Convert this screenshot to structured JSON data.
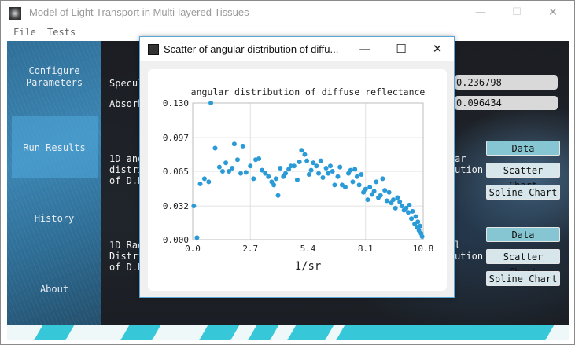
{
  "main_window": {
    "title": "Model of Light Transport in Multi-layered Tissues",
    "controls": {
      "minimize": "—",
      "maximize": "☐",
      "close": "✕"
    }
  },
  "menu": [
    "File",
    "Tests"
  ],
  "sidebar": {
    "items": [
      {
        "label_lines": [
          "Configure",
          "Parameters"
        ]
      },
      {
        "label_lines": [
          "Run Results"
        ]
      },
      {
        "label_lines": [
          "History"
        ]
      },
      {
        "label_lines": [
          "About"
        ]
      }
    ],
    "active_index": 1
  },
  "results": {
    "specular_label": "Specul",
    "specular_value": "0.236798",
    "absorbed_label": "Absorb",
    "absorbed_value": "0.096434",
    "angular_label_left": [
      "1D ang",
      "distri",
      "of D.R"
    ],
    "angular_label_right": [
      "ar",
      "ution"
    ],
    "radial_label_left": [
      "1D Rad",
      "Distri",
      "of D.R"
    ],
    "radial_label_right": [
      "l",
      "ution"
    ],
    "buttons": {
      "data": "Data",
      "scatter": "Scatter Chart",
      "spline": "Spline Chart"
    }
  },
  "dialog": {
    "title": "Scatter of angular distribution of diffu...",
    "controls": {
      "minimize": "—",
      "maximize": "☐",
      "close": "✕"
    }
  },
  "colors": {
    "sidebar_blue": "#3a82b0",
    "accent_cyan": "#36c8d8",
    "point": "#2b9bd7"
  },
  "chart_data": {
    "type": "scatter",
    "title": "angular distribution of diffuse reflectance",
    "xlabel": "1/sr",
    "ylabel": "",
    "xlim": [
      0.0,
      10.8
    ],
    "ylim": [
      0.0,
      0.13
    ],
    "xticks": [
      "0.0",
      "2.7",
      "5.4",
      "8.1",
      "10.8"
    ],
    "yticks": [
      "0.000",
      "0.032",
      "0.065",
      "0.097",
      "0.130"
    ],
    "grid": true,
    "points": [
      [
        0.05,
        0.032
      ],
      [
        0.2,
        0.002
      ],
      [
        0.35,
        0.053
      ],
      [
        0.55,
        0.058
      ],
      [
        0.75,
        0.055
      ],
      [
        0.85,
        0.13
      ],
      [
        1.05,
        0.087
      ],
      [
        1.25,
        0.069
      ],
      [
        1.4,
        0.065
      ],
      [
        1.55,
        0.073
      ],
      [
        1.7,
        0.065
      ],
      [
        1.85,
        0.068
      ],
      [
        1.95,
        0.091
      ],
      [
        2.1,
        0.076
      ],
      [
        2.25,
        0.063
      ],
      [
        2.35,
        0.089
      ],
      [
        2.5,
        0.064
      ],
      [
        2.7,
        0.07
      ],
      [
        2.85,
        0.058
      ],
      [
        2.95,
        0.076
      ],
      [
        3.1,
        0.077
      ],
      [
        3.25,
        0.066
      ],
      [
        3.4,
        0.063
      ],
      [
        3.55,
        0.06
      ],
      [
        3.7,
        0.055
      ],
      [
        3.8,
        0.052
      ],
      [
        3.9,
        0.058
      ],
      [
        4.0,
        0.042
      ],
      [
        4.1,
        0.068
      ],
      [
        4.25,
        0.06
      ],
      [
        4.35,
        0.063
      ],
      [
        4.5,
        0.067
      ],
      [
        4.6,
        0.07
      ],
      [
        4.75,
        0.07
      ],
      [
        4.9,
        0.057
      ],
      [
        5.0,
        0.074
      ],
      [
        5.1,
        0.085
      ],
      [
        5.25,
        0.081
      ],
      [
        5.35,
        0.075
      ],
      [
        5.45,
        0.062
      ],
      [
        5.55,
        0.066
      ],
      [
        5.65,
        0.073
      ],
      [
        5.8,
        0.07
      ],
      [
        5.9,
        0.063
      ],
      [
        6.0,
        0.075
      ],
      [
        6.1,
        0.059
      ],
      [
        6.25,
        0.068
      ],
      [
        6.35,
        0.063
      ],
      [
        6.45,
        0.07
      ],
      [
        6.55,
        0.065
      ],
      [
        6.65,
        0.052
      ],
      [
        6.8,
        0.06
      ],
      [
        6.9,
        0.069
      ],
      [
        7.0,
        0.052
      ],
      [
        7.15,
        0.05
      ],
      [
        7.3,
        0.063
      ],
      [
        7.4,
        0.066
      ],
      [
        7.5,
        0.055
      ],
      [
        7.6,
        0.067
      ],
      [
        7.7,
        0.06
      ],
      [
        7.8,
        0.052
      ],
      [
        7.9,
        0.062
      ],
      [
        8.0,
        0.045
      ],
      [
        8.1,
        0.048
      ],
      [
        8.2,
        0.038
      ],
      [
        8.3,
        0.05
      ],
      [
        8.4,
        0.043
      ],
      [
        8.5,
        0.046
      ],
      [
        8.6,
        0.055
      ],
      [
        8.7,
        0.04
      ],
      [
        8.8,
        0.042
      ],
      [
        8.9,
        0.058
      ],
      [
        9.0,
        0.047
      ],
      [
        9.1,
        0.037
      ],
      [
        9.2,
        0.045
      ],
      [
        9.3,
        0.035
      ],
      [
        9.4,
        0.038
      ],
      [
        9.5,
        0.03
      ],
      [
        9.6,
        0.04
      ],
      [
        9.7,
        0.036
      ],
      [
        9.8,
        0.032
      ],
      [
        9.9,
        0.028
      ],
      [
        10.0,
        0.03
      ],
      [
        10.1,
        0.026
      ],
      [
        10.15,
        0.033
      ],
      [
        10.25,
        0.02
      ],
      [
        10.3,
        0.027
      ],
      [
        10.4,
        0.015
      ],
      [
        10.45,
        0.022
      ],
      [
        10.5,
        0.012
      ],
      [
        10.55,
        0.017
      ],
      [
        10.6,
        0.009
      ],
      [
        10.65,
        0.013
      ],
      [
        10.7,
        0.006
      ],
      [
        10.75,
        0.003
      ]
    ]
  }
}
